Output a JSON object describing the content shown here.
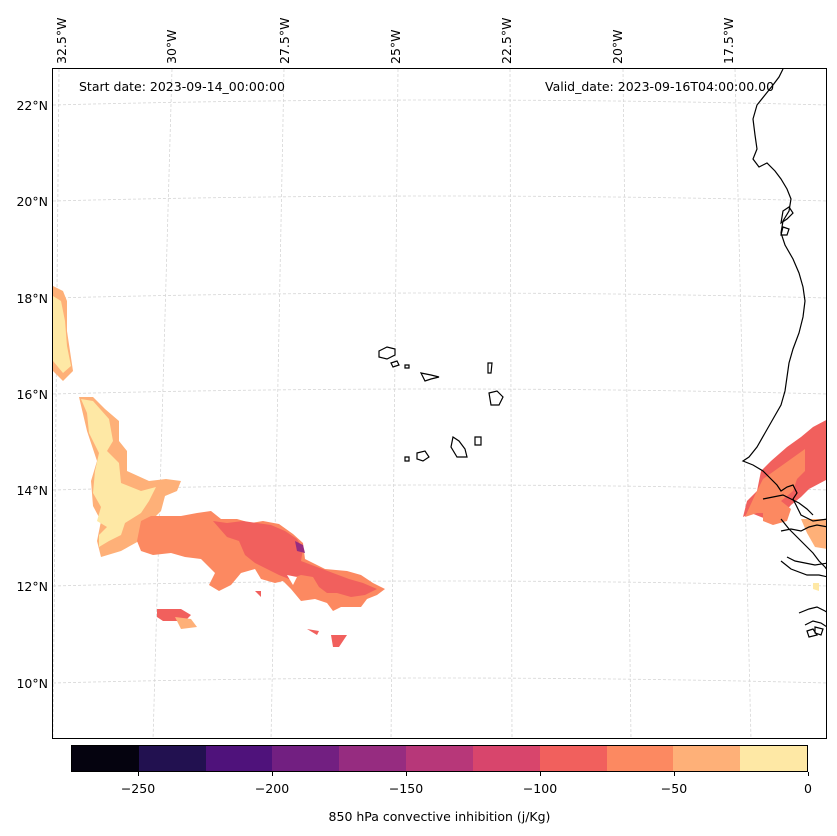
{
  "header": {
    "start_date": "Start date: 2023-09-14_00:00:00",
    "valid_date": "Valid_date: 2023-09-16T04:00:00.00"
  },
  "axes": {
    "longitude_labels": [
      "32.5°W",
      "30°W",
      "27.5°W",
      "25°W",
      "22.5°W",
      "20°W",
      "17.5°W"
    ],
    "longitude_values": [
      -32.5,
      -30,
      -27.5,
      -25,
      -22.5,
      -20,
      -17.5
    ],
    "latitude_labels": [
      "22°N",
      "20°N",
      "18°N",
      "16°N",
      "14°N",
      "12°N",
      "10°N"
    ],
    "latitude_values": [
      22,
      20,
      18,
      16,
      14,
      12,
      10
    ]
  },
  "colorbar": {
    "title": "850 hPa convective inhibition (j/Kg)",
    "range": [
      -275,
      0
    ],
    "tick_labels": [
      "−250",
      "−200",
      "−150",
      "−100",
      "−50",
      "0"
    ],
    "tick_values": [
      -250,
      -200,
      -150,
      -100,
      -50,
      0
    ],
    "levels": [
      -275,
      -250,
      -225,
      -200,
      -175,
      -150,
      -125,
      -100,
      -75,
      -50,
      -25,
      0
    ],
    "colors": [
      "#05030f",
      "#221150",
      "#4f127b",
      "#721f81",
      "#962c80",
      "#b73779",
      "#d8456c",
      "#f1605d",
      "#fc8961",
      "#feb078",
      "#fee8a5"
    ]
  },
  "map": {
    "variable": "850 hPa convective inhibition",
    "fill_colors": {
      "band_0_to_-25": "#fee8a5",
      "band_-25_to_-50": "#feb078",
      "band_-50_to_-75": "#fc8961",
      "band_-75_to_-100": "#f1605d",
      "band_-100_to_-125": "#d8456c",
      "band_-150_to_-175": "#962c80"
    }
  }
}
